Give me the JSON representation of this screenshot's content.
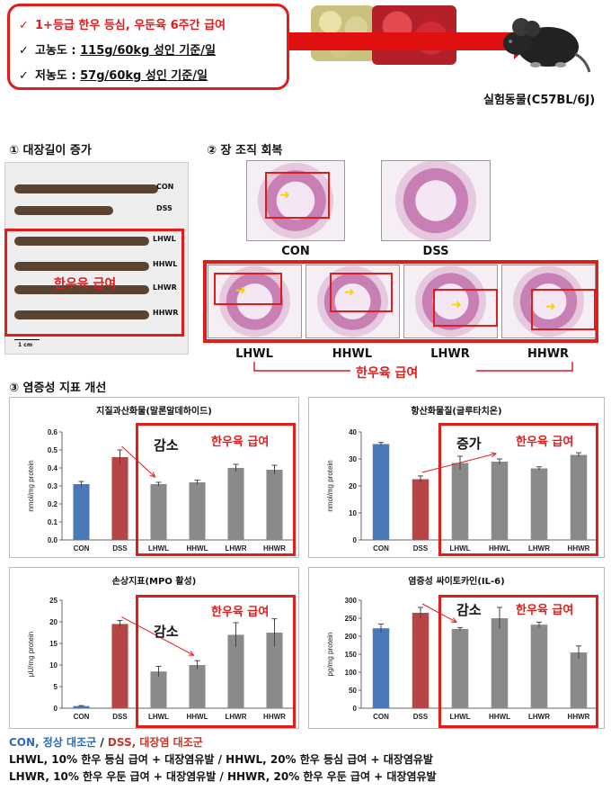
{
  "intro": {
    "line1": "1+등급 한우 등심, 우둔육 6주간 급여",
    "line2_label": "고농도 : ",
    "line2_value": "115g/60kg 성인 기준/일",
    "line3_label": "저농도 : ",
    "line3_value": "57g/60kg 성인 기준/일",
    "check": "✓",
    "animal_label": "실험동물(C57BL/6J)"
  },
  "sections": {
    "s1": "① 대장길이 증가",
    "s2": "② 장 조직 회복",
    "s3": "③ 염증성 지표 개선"
  },
  "colon": {
    "labels": [
      "CON",
      "DSS",
      "LHWL",
      "HHWL",
      "LHWR",
      "HHWR"
    ],
    "scale": "1 cm",
    "highlight_text": "한우육 급여"
  },
  "histology": {
    "top_labels": [
      "CON",
      "DSS"
    ],
    "bottom_labels": [
      "LHWL",
      "HHWL",
      "LHWR",
      "HHWR"
    ],
    "bracket_text": "한우육 급여"
  },
  "colors": {
    "blue": "#4a78b8",
    "red": "#b64545",
    "gray": "#8a8a8a",
    "accent": "#e21b1b"
  },
  "chart_data": [
    {
      "type": "bar",
      "title": "지질과산화물(말론알데하이드)",
      "ylabel": "nmol/mg protein",
      "categories": [
        "CON",
        "DSS",
        "LHWL",
        "HHWL",
        "LHWR",
        "HHWR"
      ],
      "values": [
        0.31,
        0.46,
        0.31,
        0.32,
        0.4,
        0.39
      ],
      "errors": [
        0.015,
        0.04,
        0.01,
        0.012,
        0.02,
        0.025
      ],
      "ylim": [
        0,
        0.6
      ],
      "yticks": [
        "0.0",
        "0.1",
        "0.2",
        "0.3",
        "0.4",
        "0.5",
        "0.6"
      ],
      "keyword": "감소",
      "callout": "한우육 급여"
    },
    {
      "type": "bar",
      "title": "항산화물질(글루타치온)",
      "ylabel": "nmol/mg protein",
      "categories": [
        "CON",
        "DSS",
        "LHWL",
        "HHWL",
        "LHWR",
        "HHWR"
      ],
      "values": [
        35.5,
        22.5,
        28.5,
        29.0,
        26.5,
        31.5
      ],
      "errors": [
        0.6,
        1.2,
        2.5,
        1.0,
        0.6,
        0.8
      ],
      "ylim": [
        0,
        40
      ],
      "yticks": [
        "0",
        "10",
        "20",
        "30",
        "40"
      ],
      "keyword": "증가",
      "callout": "한우육 급여"
    },
    {
      "type": "bar",
      "title": "손상지표(MPO 활성)",
      "ylabel": "μU/mg protein",
      "categories": [
        "CON",
        "DSS",
        "LHWL",
        "HHWL",
        "LHWR",
        "HHWR"
      ],
      "values": [
        0.5,
        19.5,
        8.5,
        10.0,
        17.0,
        17.5
      ],
      "errors": [
        0.1,
        0.8,
        1.2,
        1.0,
        2.8,
        3.2
      ],
      "ylim": [
        0,
        25
      ],
      "yticks": [
        "0",
        "5",
        "10",
        "15",
        "20",
        "25"
      ],
      "keyword": "감소",
      "callout": "한우육 급여"
    },
    {
      "type": "bar",
      "title": "염증성 싸이토카인(IL-6)",
      "ylabel": "pg/mg protein",
      "categories": [
        "CON",
        "DSS",
        "LHWL",
        "HHWL",
        "LHWR",
        "HHWR"
      ],
      "values": [
        222,
        265,
        220,
        250,
        232,
        155
      ],
      "errors": [
        12,
        15,
        4,
        30,
        7,
        18
      ],
      "ylim": [
        0,
        300
      ],
      "yticks": [
        "0",
        "50",
        "100",
        "150",
        "200",
        "250",
        "300"
      ],
      "keyword": "감소",
      "callout": "한우육 급여"
    }
  ],
  "footer": {
    "con": "CON, 정상 대조군",
    "sep": " / ",
    "dss": "DSS, 대장염 대조군",
    "line2": "LHWL, 10% 한우 등심 급여 + 대장염유발 / HHWL, 20% 한우 등심 급여 + 대장염유발",
    "line3": "LHWR, 10% 한우 우둔 급여 + 대장염유발 / HHWR, 20% 한우 우둔 급여 + 대장염유발"
  }
}
